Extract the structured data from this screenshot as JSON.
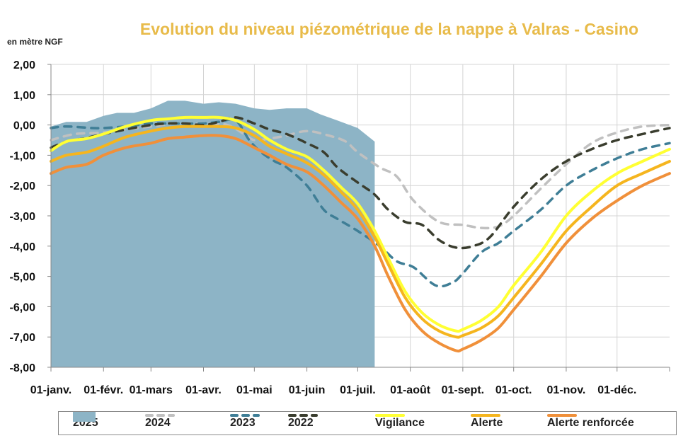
{
  "chart_data": {
    "type": "area+line",
    "title": "Evolution du niveau piézométrique de la nappe à Valras - Casino",
    "ylabel": "en mètre NGF",
    "ylim": [
      -8,
      2
    ],
    "yticks": [
      "2,00",
      "1,00",
      "0,00",
      "-1,00",
      "-2,00",
      "-3,00",
      "-4,00",
      "-5,00",
      "-6,00",
      "-7,00",
      "-8,00"
    ],
    "xlim": [
      1,
      366
    ],
    "xticks": [
      {
        "label": "01-janv.",
        "day": 1
      },
      {
        "label": "01-févr.",
        "day": 32
      },
      {
        "label": "01-mars",
        "day": 60
      },
      {
        "label": "01-avr.",
        "day": 91
      },
      {
        "label": "01-mai",
        "day": 121
      },
      {
        "label": "01-juin",
        "day": 152
      },
      {
        "label": "01-juil.",
        "day": 182
      },
      {
        "label": "01-août",
        "day": 213
      },
      {
        "label": "01-sept.",
        "day": 244
      },
      {
        "label": "01-oct.",
        "day": 274
      },
      {
        "label": "01-nov.",
        "day": 305
      },
      {
        "label": "01-déc.",
        "day": 335
      }
    ],
    "grid": true,
    "legend_position": "bottom",
    "series": [
      {
        "name": "2025",
        "style": "area",
        "color": "#8DB4C6",
        "x": [
          1,
          10,
          22,
          32,
          40,
          50,
          60,
          70,
          80,
          91,
          100,
          110,
          121,
          130,
          140,
          152,
          160,
          170,
          182,
          192
        ],
        "y": [
          -0.05,
          0.1,
          0.1,
          0.3,
          0.4,
          0.4,
          0.55,
          0.8,
          0.8,
          0.7,
          0.75,
          0.7,
          0.55,
          0.5,
          0.55,
          0.55,
          0.35,
          0.15,
          -0.1,
          -0.55
        ]
      },
      {
        "name": "2024",
        "style": "dash",
        "color": "#C0C0C0",
        "x": [
          1,
          15,
          32,
          45,
          60,
          75,
          91,
          105,
          115,
          121,
          130,
          140,
          152,
          165,
          175,
          182,
          195,
          205,
          215,
          230,
          244,
          255,
          265,
          274,
          290,
          305,
          320,
          335,
          350,
          366
        ],
        "y": [
          -0.5,
          -0.3,
          -0.25,
          -0.15,
          -0.05,
          0.05,
          0.05,
          0.0,
          -0.3,
          -0.5,
          -0.45,
          -0.35,
          -0.2,
          -0.35,
          -0.55,
          -0.9,
          -1.4,
          -1.7,
          -2.5,
          -3.2,
          -3.3,
          -3.4,
          -3.35,
          -3.0,
          -2.1,
          -1.3,
          -0.6,
          -0.25,
          -0.05,
          0.0
        ]
      },
      {
        "name": "2023",
        "style": "dash",
        "color": "#3F7E96",
        "x": [
          1,
          10,
          25,
          32,
          45,
          60,
          70,
          80,
          91,
          100,
          110,
          118,
          125,
          133,
          140,
          152,
          162,
          170,
          182,
          195,
          205,
          215,
          228,
          238,
          244,
          255,
          265,
          274,
          290,
          305,
          320,
          335,
          350,
          366
        ],
        "y": [
          -0.1,
          -0.05,
          -0.1,
          -0.1,
          -0.05,
          0.05,
          0.05,
          0.05,
          0.05,
          0.1,
          0.15,
          -0.5,
          -0.9,
          -1.2,
          -1.4,
          -2.0,
          -2.8,
          -3.1,
          -3.5,
          -4.0,
          -4.5,
          -4.7,
          -5.3,
          -5.2,
          -4.9,
          -4.2,
          -3.9,
          -3.5,
          -2.8,
          -2.0,
          -1.5,
          -1.1,
          -0.8,
          -0.6
        ]
      },
      {
        "name": "2022",
        "style": "dash",
        "color": "#3A3D2E",
        "x": [
          1,
          10,
          20,
          32,
          45,
          60,
          70,
          80,
          91,
          100,
          110,
          121,
          130,
          140,
          152,
          162,
          170,
          182,
          192,
          200,
          210,
          220,
          230,
          240,
          250,
          260,
          274,
          290,
          305,
          320,
          335,
          350,
          366
        ],
        "y": [
          -0.75,
          -0.55,
          -0.45,
          -0.3,
          -0.15,
          0.0,
          0.05,
          0.05,
          0.0,
          0.1,
          0.25,
          0.05,
          -0.15,
          -0.3,
          -0.6,
          -0.9,
          -1.4,
          -1.9,
          -2.3,
          -2.8,
          -3.2,
          -3.3,
          -3.8,
          -4.05,
          -4.0,
          -3.7,
          -2.7,
          -1.8,
          -1.2,
          -0.8,
          -0.5,
          -0.3,
          -0.1
        ]
      },
      {
        "name": "Vigilance",
        "style": "solid",
        "color": "#FFFF33",
        "x": [
          1,
          10,
          22,
          32,
          45,
          60,
          70,
          80,
          91,
          100,
          110,
          121,
          130,
          140,
          152,
          162,
          172,
          182,
          192,
          200,
          210,
          220,
          230,
          240,
          244,
          255,
          265,
          274,
          290,
          305,
          320,
          335,
          350,
          366
        ],
        "y": [
          -0.85,
          -0.55,
          -0.45,
          -0.3,
          -0.05,
          0.15,
          0.2,
          0.25,
          0.25,
          0.25,
          0.15,
          -0.15,
          -0.5,
          -0.8,
          -1.05,
          -1.5,
          -2.05,
          -2.6,
          -3.5,
          -4.4,
          -5.5,
          -6.2,
          -6.6,
          -6.8,
          -6.75,
          -6.45,
          -6.0,
          -5.3,
          -4.2,
          -3.0,
          -2.2,
          -1.6,
          -1.2,
          -0.8
        ]
      },
      {
        "name": "Alerte",
        "style": "solid",
        "color": "#F5B51E",
        "x": [
          1,
          10,
          22,
          32,
          45,
          60,
          70,
          80,
          91,
          100,
          110,
          121,
          130,
          140,
          152,
          162,
          172,
          182,
          192,
          200,
          210,
          220,
          230,
          240,
          244,
          255,
          265,
          274,
          290,
          305,
          320,
          335,
          350,
          366
        ],
        "y": [
          -1.2,
          -1.0,
          -0.9,
          -0.7,
          -0.4,
          -0.2,
          -0.1,
          -0.05,
          -0.05,
          -0.05,
          -0.1,
          -0.35,
          -0.7,
          -0.95,
          -1.25,
          -1.65,
          -2.2,
          -2.8,
          -3.7,
          -4.6,
          -5.7,
          -6.4,
          -6.8,
          -7.0,
          -6.95,
          -6.7,
          -6.3,
          -5.7,
          -4.6,
          -3.5,
          -2.7,
          -2.0,
          -1.6,
          -1.2
        ]
      },
      {
        "name": "Alerte renforcée",
        "style": "solid",
        "color": "#F0903A",
        "x": [
          1,
          10,
          22,
          32,
          45,
          60,
          70,
          80,
          91,
          100,
          110,
          121,
          130,
          140,
          152,
          162,
          172,
          182,
          192,
          200,
          210,
          220,
          230,
          240,
          244,
          255,
          265,
          274,
          290,
          305,
          320,
          335,
          350,
          366
        ],
        "y": [
          -1.6,
          -1.4,
          -1.3,
          -1.0,
          -0.75,
          -0.6,
          -0.45,
          -0.4,
          -0.35,
          -0.35,
          -0.45,
          -0.75,
          -1.0,
          -1.3,
          -1.55,
          -2.0,
          -2.55,
          -3.1,
          -4.0,
          -5.0,
          -6.1,
          -6.8,
          -7.2,
          -7.45,
          -7.4,
          -7.1,
          -6.7,
          -6.1,
          -5.0,
          -3.9,
          -3.1,
          -2.5,
          -2.0,
          -1.6
        ]
      }
    ]
  }
}
